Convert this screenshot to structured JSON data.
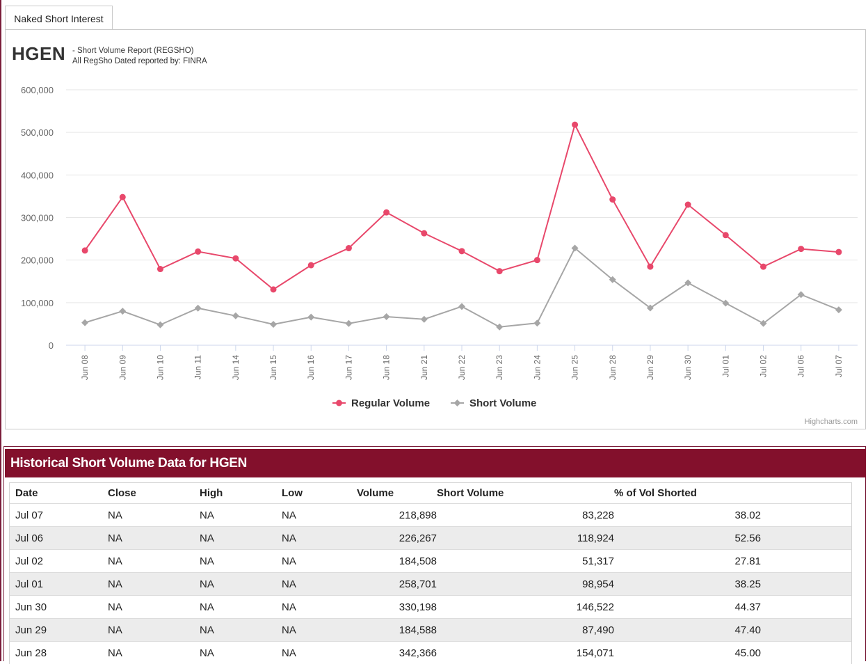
{
  "tab": {
    "label": "Naked Short Interest"
  },
  "header": {
    "ticker": "HGEN",
    "subtitle_line1": "- Short Volume Report  (REGSHO)",
    "subtitle_line2": "All RegSho Dated reported by: FINRA"
  },
  "chart_data": {
    "type": "line",
    "title": "HGEN - Short Volume Report (REGSHO)",
    "categories": [
      "Jun 08",
      "Jun 09",
      "Jun 10",
      "Jun 11",
      "Jun 14",
      "Jun 15",
      "Jun 16",
      "Jun 17",
      "Jun 18",
      "Jun 21",
      "Jun 22",
      "Jun 23",
      "Jun 24",
      "Jun 25",
      "Jun 28",
      "Jun 29",
      "Jun 30",
      "Jul 01",
      "Jul 02",
      "Jul 06",
      "Jul 07"
    ],
    "y_ticks": [
      0,
      100000,
      200000,
      300000,
      400000,
      500000,
      600000
    ],
    "y_tick_labels": [
      "0",
      "100,000",
      "200,000",
      "300,000",
      "400,000",
      "500,000",
      "600,000"
    ],
    "ylim": [
      0,
      600000
    ],
    "legend_position": "bottom-center",
    "series": [
      {
        "name": "Regular Volume",
        "color": "#e8486b",
        "marker": "circle",
        "values": [
          222500,
          348000,
          179000,
          220000,
          204000,
          131000,
          188000,
          228000,
          312000,
          263000,
          221000,
          174000,
          200000,
          518000,
          342366,
          184588,
          330198,
          258701,
          184508,
          226267,
          218898
        ]
      },
      {
        "name": "Short Volume",
        "color": "#a6a6a6",
        "marker": "diamond",
        "values": [
          53000,
          80000,
          48000,
          87000,
          69000,
          49000,
          66000,
          51000,
          67000,
          61000,
          91000,
          43000,
          52000,
          228000,
          154071,
          87490,
          146522,
          98954,
          51317,
          118924,
          83228
        ]
      }
    ]
  },
  "credits": "Highcharts.com",
  "historical": {
    "title": "Historical Short Volume Data for HGEN",
    "columns": [
      "Date",
      "Close",
      "High",
      "Low",
      "Volume",
      "Short Volume",
      "% of Vol Shorted"
    ],
    "rows": [
      [
        "Jul 07",
        "NA",
        "NA",
        "NA",
        "218,898",
        "83,228",
        "38.02"
      ],
      [
        "Jul 06",
        "NA",
        "NA",
        "NA",
        "226,267",
        "118,924",
        "52.56"
      ],
      [
        "Jul 02",
        "NA",
        "NA",
        "NA",
        "184,508",
        "51,317",
        "27.81"
      ],
      [
        "Jul 01",
        "NA",
        "NA",
        "NA",
        "258,701",
        "98,954",
        "38.25"
      ],
      [
        "Jun 30",
        "NA",
        "NA",
        "NA",
        "330,198",
        "146,522",
        "44.37"
      ],
      [
        "Jun 29",
        "NA",
        "NA",
        "NA",
        "184,588",
        "87,490",
        "47.40"
      ],
      [
        "Jun 28",
        "NA",
        "NA",
        "NA",
        "342,366",
        "154,071",
        "45.00"
      ]
    ]
  }
}
